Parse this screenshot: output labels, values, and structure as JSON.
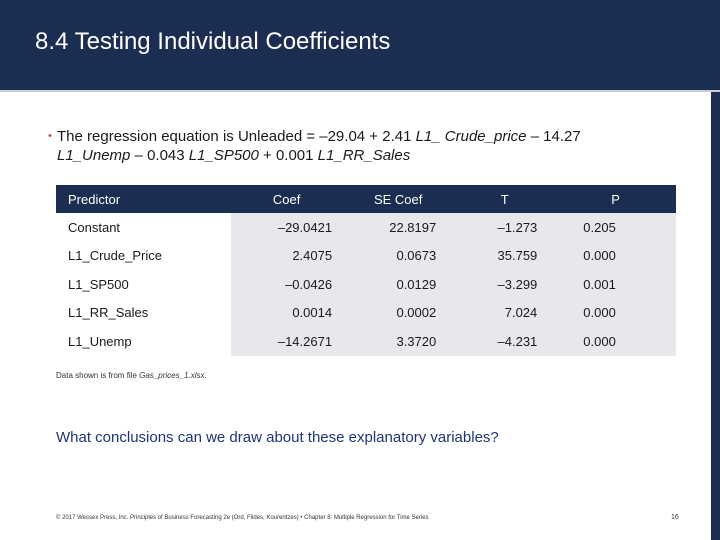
{
  "slide": {
    "title": "8.4 Testing Individual Coefficients",
    "bullet": {
      "marker": "•",
      "segments": [
        {
          "text": "The regression equation is Unleaded = –29.04 + 2.41 ",
          "italic": false
        },
        {
          "text": "L1_ Crude_price",
          "italic": true
        },
        {
          "text": " – 14.27 ",
          "italic": false
        },
        {
          "text": "L1_Unemp",
          "italic": true
        },
        {
          "text": " – 0.043 ",
          "italic": false
        },
        {
          "text": "L1_SP500",
          "italic": true
        },
        {
          "text": " + 0.001 ",
          "italic": false
        },
        {
          "text": "L1_RR_Sales",
          "italic": true
        }
      ]
    },
    "table": {
      "headers": [
        "Predictor",
        "Coef",
        "SE Coef",
        "T",
        "P"
      ],
      "rows": [
        [
          "Constant",
          "–29.0421",
          "22.8197",
          "–1.273",
          "0.205"
        ],
        [
          "L1_Crude_Price",
          "2.4075",
          "0.0673",
          "35.759",
          "0.000"
        ],
        [
          "L1_SP500",
          "–0.0426",
          "0.0129",
          "–3.299",
          "0.001"
        ],
        [
          "L1_RR_Sales",
          "0.0014",
          "0.0002",
          "7.024",
          "0.000"
        ],
        [
          "L1_Unemp",
          "–14.2671",
          "3.3720",
          "–4.231",
          "0.000"
        ]
      ]
    },
    "source_note": {
      "prefix": "Data shown is from file ",
      "file": "Gas_prices_1.xlsx",
      "suffix": "."
    },
    "question": "What conclusions can we draw about these explanatory variables?",
    "footer": "© 2017 Wessex Press, Inc. Principles of Business Forecasting 2e (Ord, Fildes, Kourentzes) • Chapter 8: Multiple Regression for Time Series",
    "page_number": "16"
  },
  "colors": {
    "header_bg": "#1c2d52",
    "table_cell_bg": "#e6e8ec",
    "question_text": "#1d3577",
    "bullet_marker": "#c0504d"
  }
}
